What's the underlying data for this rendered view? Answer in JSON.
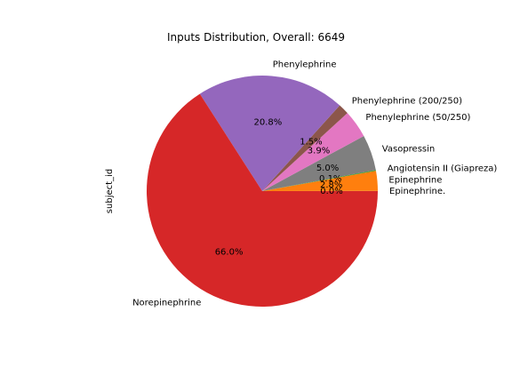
{
  "chart_data": {
    "type": "pie",
    "title": "Inputs Distribution, Overall: 6649",
    "ylabel": "subject_id",
    "start_angle_deg": 0,
    "direction": "counterclockwise",
    "slices": [
      {
        "label": "Epinephrine.",
        "value": 0.02,
        "pct_label": "0.0%",
        "color": "#1f77b4"
      },
      {
        "label": "Epinephrine",
        "value": 2.8,
        "pct_label": "2.8%",
        "color": "#ff7f0e"
      },
      {
        "label": "Angiotensin II (Giapreza)",
        "value": 0.1,
        "pct_label": "0.1%",
        "color": "#2ca02c"
      },
      {
        "label": "Vasopressin",
        "value": 5.0,
        "pct_label": "5.0%",
        "color": "#7f7f7f"
      },
      {
        "label": "Phenylephrine (50/250)",
        "value": 3.9,
        "pct_label": "3.9%",
        "color": "#e377c2"
      },
      {
        "label": "Phenylephrine (200/250)",
        "value": 1.5,
        "pct_label": "1.5%",
        "color": "#8c564b"
      },
      {
        "label": "Phenylephrine",
        "value": 20.8,
        "pct_label": "20.8%",
        "color": "#9467bd"
      },
      {
        "label": "Norepinephrine",
        "value": 66.0,
        "pct_label": "66.0%",
        "color": "#d62728"
      }
    ]
  }
}
